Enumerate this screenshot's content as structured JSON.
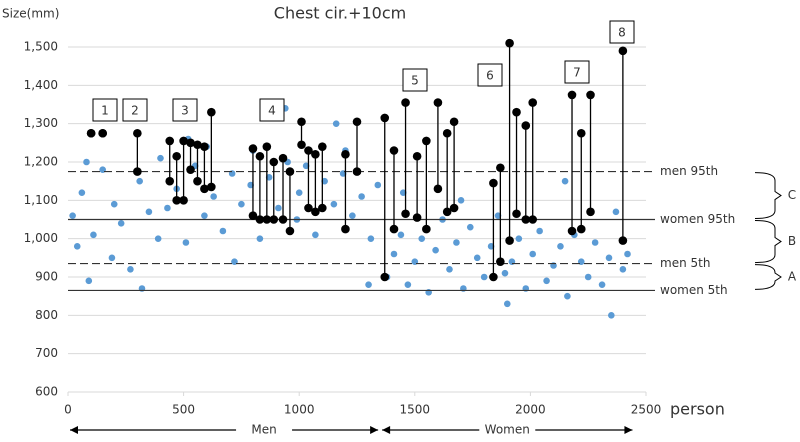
{
  "chart_data": {
    "type": "scatter",
    "title": "Chest cir.+10cm",
    "y_label": "Size(mm)",
    "x_label": "person",
    "xlim": [
      0,
      2500
    ],
    "ylim": [
      600,
      1500
    ],
    "xticks": [
      0,
      500,
      1000,
      1500,
      2000,
      2500
    ],
    "yticks": [
      600,
      700,
      800,
      900,
      {
        "value": 1000,
        "label": "1,000"
      },
      {
        "value": 1100,
        "label": "1,100"
      },
      {
        "value": 1200,
        "label": "1,200"
      },
      {
        "value": 1300,
        "label": "1,300"
      },
      {
        "value": 1400,
        "label": "1,400"
      },
      {
        "value": 1500,
        "label": "1,500"
      }
    ],
    "grid": true,
    "points": {
      "color": "#5b9bd5",
      "x": [
        20,
        40,
        60,
        90,
        110,
        150,
        190,
        200,
        230,
        270,
        310,
        350,
        390,
        400,
        430,
        470,
        510,
        550,
        590,
        600,
        630,
        670,
        710,
        750,
        790,
        800,
        830,
        870,
        910,
        950,
        990,
        1000,
        1030,
        1070,
        1110,
        1150,
        1190,
        1200,
        1230,
        1270,
        1310,
        1340,
        1380,
        1410,
        1440,
        1470,
        1500,
        1530,
        1560,
        1590,
        1620,
        1650,
        1680,
        1710,
        1740,
        1770,
        1800,
        1830,
        1860,
        1890,
        1920,
        1950,
        1980,
        2010,
        2040,
        2070,
        2100,
        2130,
        2160,
        2190,
        2220,
        2250,
        2280,
        2310,
        2340,
        2370,
        2400,
        2420,
        80,
        320,
        520,
        720,
        940,
        1160,
        1300,
        1450,
        1700,
        1900,
        2150,
        2350
      ],
      "values": [
        1060,
        980,
        1120,
        890,
        1010,
        1180,
        950,
        1090,
        1040,
        920,
        1150,
        1070,
        1000,
        1210,
        1080,
        1130,
        990,
        1190,
        1060,
        1240,
        1110,
        1020,
        1170,
        1090,
        1140,
        1230,
        1000,
        1160,
        1080,
        1200,
        1050,
        1120,
        1190,
        1010,
        1150,
        1090,
        1170,
        1230,
        1060,
        1110,
        1000,
        1140,
        900,
        960,
        1010,
        880,
        940,
        1000,
        860,
        970,
        1050,
        920,
        990,
        870,
        1030,
        950,
        900,
        980,
        1060,
        910,
        940,
        1000,
        870,
        960,
        1020,
        890,
        930,
        980,
        850,
        1010,
        940,
        900,
        990,
        880,
        950,
        1070,
        920,
        960,
        1200,
        870,
        1260,
        940,
        1340,
        1300,
        880,
        1120,
        1100,
        830,
        1150,
        800
      ]
    },
    "pairs": {
      "color": "#000000",
      "x": [
        100,
        150,
        300,
        440,
        470,
        500,
        530,
        560,
        590,
        620,
        800,
        830,
        860,
        890,
        930,
        960,
        1010,
        1040,
        1070,
        1100,
        1200,
        1250,
        1370,
        1410,
        1460,
        1510,
        1550,
        1600,
        1640,
        1670,
        1840,
        1870,
        1910,
        1940,
        1980,
        2010,
        2180,
        2220,
        2260,
        2400
      ],
      "low": [
        1275,
        1275,
        1175,
        1150,
        1100,
        1100,
        1180,
        1150,
        1130,
        1135,
        1060,
        1050,
        1050,
        1050,
        1050,
        1020,
        1245,
        1080,
        1070,
        1080,
        1025,
        1175,
        900,
        1025,
        1065,
        1055,
        1025,
        1130,
        1070,
        1080,
        900,
        940,
        995,
        1065,
        1050,
        1050,
        1020,
        1025,
        1070,
        995
      ],
      "high": [
        1275,
        1275,
        1275,
        1255,
        1215,
        1255,
        1250,
        1245,
        1240,
        1330,
        1235,
        1215,
        1240,
        1200,
        1210,
        1175,
        1305,
        1230,
        1220,
        1240,
        1220,
        1305,
        1315,
        1230,
        1355,
        1215,
        1255,
        1355,
        1275,
        1305,
        1145,
        1185,
        1510,
        1330,
        1295,
        1355,
        1375,
        1275,
        1375,
        1490
      ]
    },
    "ref_lines": [
      {
        "label": "men 95th",
        "value": 1175,
        "dashed": true
      },
      {
        "label": "women 95th",
        "value": 1050,
        "dashed": false
      },
      {
        "label": "men 5th",
        "value": 935,
        "dashed": true
      },
      {
        "label": "women 5th",
        "value": 865,
        "dashed": false
      }
    ],
    "groups": [
      "1",
      "2",
      "3",
      "4",
      "5",
      "6",
      "7",
      "8"
    ],
    "brackets": [
      "C",
      "B",
      "A"
    ],
    "sex_arrows": [
      {
        "label": "Men",
        "from": 0,
        "to": 1350
      },
      {
        "label": "Women",
        "from": 1350,
        "to": 2450
      }
    ]
  }
}
